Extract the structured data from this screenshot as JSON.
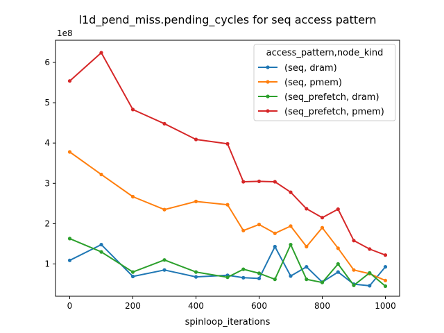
{
  "chart_data": {
    "type": "line",
    "title": "l1d_pend_miss.pending_cycles for seq access pattern",
    "xlabel": "spinloop_iterations",
    "ylabel": "",
    "y_scale_label": "1e8",
    "xlim": [
      -45,
      1045
    ],
    "ylim": [
      20000000,
      655000000
    ],
    "xticks": [
      0,
      200,
      400,
      600,
      800,
      1000
    ],
    "yticks": [
      100000000,
      200000000,
      300000000,
      400000000,
      500000000,
      600000000
    ],
    "ytick_labels": [
      "1",
      "2",
      "3",
      "4",
      "5",
      "6"
    ],
    "grid": false,
    "legend_title": "access_pattern,node_kind",
    "legend_position": "top-right",
    "x": [
      0,
      100,
      200,
      300,
      400,
      500,
      550,
      600,
      650,
      700,
      750,
      800,
      850,
      900,
      950,
      1000
    ],
    "series": [
      {
        "name": "(seq, dram)",
        "color": "#1f77b4",
        "values": [
          109000000,
          148000000,
          69000000,
          85000000,
          68000000,
          72000000,
          66000000,
          64000000,
          143000000,
          70000000,
          93000000,
          55000000,
          80000000,
          50000000,
          46000000,
          93000000
        ]
      },
      {
        "name": "(seq, pmem)",
        "color": "#ff7f0e",
        "values": [
          378000000,
          322000000,
          267000000,
          235000000,
          255000000,
          247000000,
          183000000,
          198000000,
          176000000,
          194000000,
          143000000,
          190000000,
          139000000,
          85000000,
          76000000,
          59000000
        ]
      },
      {
        "name": "(seq_prefetch, dram)",
        "color": "#2ca02c",
        "values": [
          163000000,
          130000000,
          80000000,
          110000000,
          80000000,
          67000000,
          87000000,
          77000000,
          62000000,
          148000000,
          62000000,
          54000000,
          100000000,
          47000000,
          78000000,
          45000000
        ]
      },
      {
        "name": "(seq_prefetch, pmem)",
        "color": "#d62728",
        "values": [
          554000000,
          624000000,
          483000000,
          448000000,
          409000000,
          398000000,
          304000000,
          305000000,
          304000000,
          278000000,
          237000000,
          215000000,
          236000000,
          158000000,
          137000000,
          122000000
        ]
      }
    ]
  }
}
